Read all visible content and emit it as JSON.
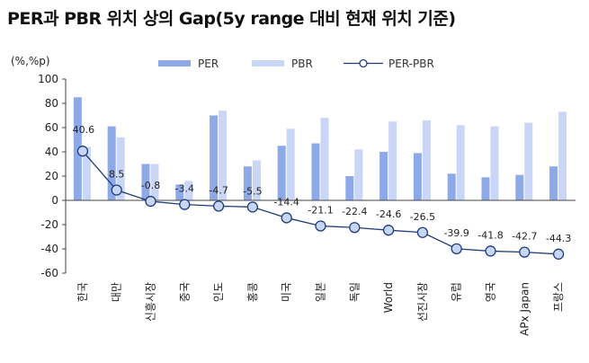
{
  "title": "PER과 PBR 위치 상의 Gap(5y range 대비 현재 위치 기준)",
  "colors": {
    "per": "#8ea9e8",
    "pbr": "#c9d6f5",
    "line": "#1f3d7a",
    "marker_fill": "#c7d6f4",
    "axis": "#444444"
  },
  "chart_data": {
    "type": "bar",
    "title": "PER과 PBR 위치 상의 Gap(5y range 대비 현재 위치 기준)",
    "unit_label": "(%,%p)",
    "ylim": [
      -60,
      100
    ],
    "yticks": [
      -60,
      -40,
      -20,
      0,
      20,
      40,
      60,
      80,
      100
    ],
    "grid": false,
    "legend_position": "top",
    "categories": [
      "한국",
      "대만",
      "신흥시장",
      "중국",
      "인도",
      "홍콩",
      "미국",
      "일본",
      "독일",
      "World",
      "선진시장",
      "유럽",
      "영국",
      "APx Japan",
      "프랑스"
    ],
    "series": [
      {
        "name": "PER",
        "kind": "bar",
        "values": [
          85,
          61,
          30,
          13,
          70,
          28,
          45,
          47,
          20,
          40,
          39,
          22,
          19,
          21,
          28
        ]
      },
      {
        "name": "PBR",
        "kind": "bar",
        "values": [
          44,
          52,
          30,
          16,
          74,
          33,
          59,
          68,
          42,
          65,
          66,
          62,
          61,
          64,
          73
        ]
      },
      {
        "name": "PER-PBR",
        "kind": "line",
        "values": [
          40.6,
          8.5,
          -0.8,
          -3.4,
          -4.7,
          -5.5,
          -14.4,
          -21.1,
          -22.4,
          -24.6,
          -26.5,
          -39.9,
          -41.8,
          -42.7,
          -44.3
        ],
        "labels": [
          "40.6",
          "8.5",
          "-0.8",
          "-3.4",
          "-4.7",
          "-5.5",
          "-14.4",
          "-21.1",
          "-22.4",
          "-24.6",
          "-26.5",
          "-39.9",
          "-41.8",
          "-42.7",
          "-44.3"
        ]
      }
    ]
  }
}
